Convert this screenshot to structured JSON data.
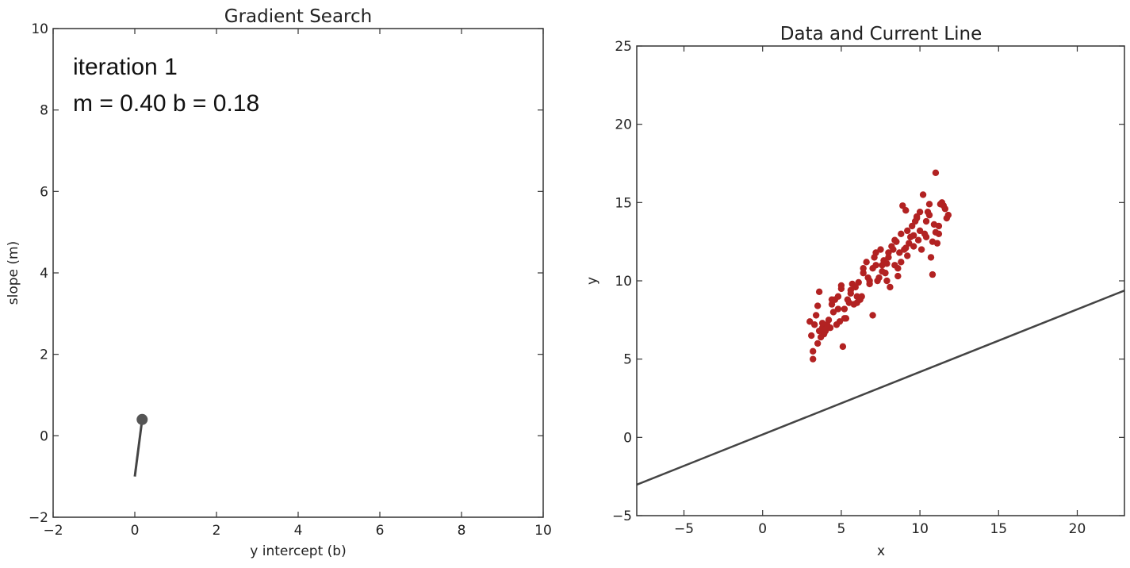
{
  "chart_data": [
    {
      "type": "line",
      "title": "Gradient Search",
      "xlabel": "y intercept (b)",
      "ylabel": "slope (m)",
      "xlim": [
        -2,
        10
      ],
      "ylim": [
        -2,
        10
      ],
      "xticks": [
        -2,
        0,
        2,
        4,
        6,
        8,
        10
      ],
      "yticks": [
        -2,
        0,
        2,
        4,
        6,
        8,
        10
      ],
      "tick_labels_x": [
        "−2",
        "0",
        "2",
        "4",
        "6",
        "8",
        "10"
      ],
      "tick_labels_y": [
        "−2",
        "0",
        "2",
        "4",
        "6",
        "8",
        "10"
      ],
      "grid": false,
      "annotations": [
        "iteration 1",
        "m = 0.40  b = 0.18"
      ],
      "path": {
        "x": [
          0.0,
          0.18
        ],
        "y": [
          -1.0,
          0.4
        ]
      },
      "marker": {
        "x": 0.18,
        "y": 0.4
      },
      "colors": {
        "path": "#444444",
        "marker": "#555555"
      }
    },
    {
      "type": "scatter",
      "title": "Data and Current Line",
      "xlabel": "x",
      "ylabel": "y",
      "xlim": [
        -8,
        23
      ],
      "ylim": [
        -5,
        25
      ],
      "xticks": [
        -5,
        0,
        5,
        10,
        15,
        20
      ],
      "yticks": [
        -5,
        0,
        5,
        10,
        15,
        20,
        25
      ],
      "tick_labels_x": [
        "−5",
        "0",
        "5",
        "10",
        "15",
        "20"
      ],
      "tick_labels_y": [
        "−5",
        "0",
        "5",
        "10",
        "15",
        "20",
        "25"
      ],
      "grid": false,
      "points": {
        "x": [
          3.1,
          3.3,
          3.5,
          3.6,
          3.8,
          4.0,
          4.2,
          4.4,
          4.6,
          3.2,
          3.4,
          3.9,
          4.3,
          4.8,
          5.0,
          5.2,
          5.1,
          5.4,
          5.6,
          5.8,
          6.0,
          6.2,
          5.3,
          5.7,
          6.4,
          6.6,
          6.8,
          7.0,
          7.2,
          7.4,
          7.5,
          7.6,
          7.8,
          8.0,
          8.1,
          8.2,
          8.4,
          8.5,
          8.6,
          8.8,
          9.0,
          9.1,
          9.2,
          9.4,
          9.5,
          9.6,
          9.8,
          10.0,
          10.1,
          10.2,
          10.4,
          10.6,
          10.8,
          11.0,
          11.2,
          11.4,
          11.6,
          11.8,
          3.0,
          3.7,
          4.1,
          4.5,
          4.9,
          5.5,
          5.9,
          6.3,
          6.7,
          7.1,
          7.3,
          7.7,
          7.9,
          8.3,
          8.7,
          8.9,
          9.3,
          9.7,
          9.9,
          10.3,
          10.5,
          10.7,
          10.9,
          11.1,
          11.3,
          11.5,
          11.7,
          3.2,
          3.6,
          4.0,
          4.4,
          4.8,
          5.2,
          5.6,
          6.0,
          6.4,
          6.8,
          7.2,
          7.6,
          8.0,
          8.4,
          8.8,
          9.2,
          9.6,
          10.0,
          10.4,
          10.8,
          11.2,
          3.5,
          4.7,
          6.1,
          7.9,
          9.1,
          10.6,
          11.0,
          8.6,
          7.0,
          5.0,
          3.8,
          9.8
        ],
        "y": [
          6.5,
          7.2,
          6.0,
          9.3,
          7.0,
          6.8,
          7.5,
          8.5,
          8.8,
          5.0,
          7.8,
          6.6,
          7.0,
          9.0,
          9.5,
          8.2,
          5.8,
          8.8,
          9.2,
          8.5,
          9.0,
          8.8,
          7.6,
          9.8,
          10.5,
          11.2,
          9.8,
          10.8,
          11.8,
          10.2,
          12.0,
          11.0,
          10.5,
          11.5,
          9.6,
          12.2,
          11.0,
          12.5,
          10.8,
          13.0,
          12.0,
          14.5,
          11.6,
          12.8,
          13.5,
          12.2,
          14.0,
          13.2,
          12.0,
          15.5,
          12.8,
          14.2,
          10.4,
          16.9,
          13.5,
          15.0,
          14.6,
          14.2,
          7.4,
          6.4,
          7.2,
          8.0,
          7.4,
          8.6,
          9.6,
          9.0,
          10.2,
          11.5,
          10.0,
          11.3,
          10.0,
          12.0,
          11.8,
          14.8,
          12.4,
          13.8,
          12.6,
          13.0,
          14.4,
          11.5,
          13.6,
          12.4,
          14.9,
          14.8,
          14.0,
          5.5,
          6.8,
          6.9,
          8.8,
          8.2,
          7.6,
          9.4,
          8.6,
          10.8,
          10.0,
          11.0,
          10.6,
          11.8,
          12.6,
          11.2,
          13.2,
          12.9,
          14.4,
          13.8,
          12.5,
          13.0,
          8.4,
          7.2,
          9.9,
          11.1,
          12.1,
          14.9,
          13.1,
          10.3,
          7.8,
          9.7,
          7.3,
          14.1
        ],
        "color": "#b22222"
      },
      "line": {
        "m": 0.4,
        "b": 0.18,
        "color": "#444444"
      }
    }
  ]
}
